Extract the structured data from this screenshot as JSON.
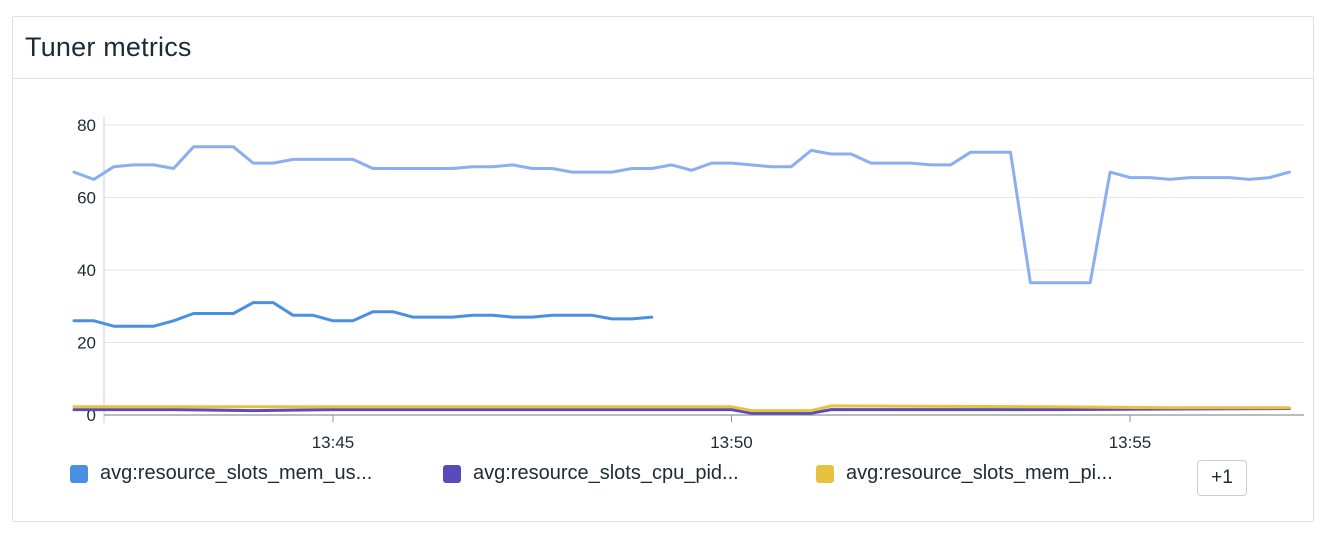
{
  "widget": {
    "title": "Tuner metrics",
    "more_label": "+1"
  },
  "legend": [
    {
      "label": "avg:resource_slots_mem_us...",
      "color": "#4a90e2"
    },
    {
      "label": "avg:resource_slots_cpu_pid...",
      "color": "#5a4bbd"
    },
    {
      "label": "avg:resource_slots_mem_pi...",
      "color": "#e8c23d"
    }
  ],
  "chart_data": {
    "type": "line",
    "title": "Tuner metrics",
    "xlabel": "",
    "ylabel": "",
    "x_range": [
      "13:41:45",
      "13:57:00"
    ],
    "x_ticks": [
      "13:45",
      "13:50",
      "13:55"
    ],
    "y_ticks": [
      0,
      20,
      40,
      60,
      80
    ],
    "ylim": [
      0,
      80
    ],
    "grid": true,
    "legend_position": "bottom",
    "series": [
      {
        "color": "#8aaef2",
        "points": [
          [
            "13:41:45",
            67
          ],
          [
            "13:42:00",
            65
          ],
          [
            "13:42:15",
            68.5
          ],
          [
            "13:42:30",
            69
          ],
          [
            "13:42:45",
            69
          ],
          [
            "13:43:00",
            68
          ],
          [
            "13:43:15",
            74
          ],
          [
            "13:43:30",
            74
          ],
          [
            "13:43:45",
            74
          ],
          [
            "13:44:00",
            69.5
          ],
          [
            "13:44:15",
            69.5
          ],
          [
            "13:44:30",
            70.5
          ],
          [
            "13:44:45",
            70.5
          ],
          [
            "13:45:00",
            70.5
          ],
          [
            "13:45:15",
            70.5
          ],
          [
            "13:45:30",
            68
          ],
          [
            "13:45:45",
            68
          ],
          [
            "13:46:00",
            68
          ],
          [
            "13:46:15",
            68
          ],
          [
            "13:46:30",
            68
          ],
          [
            "13:46:45",
            68.5
          ],
          [
            "13:47:00",
            68.5
          ],
          [
            "13:47:15",
            69
          ],
          [
            "13:47:30",
            68
          ],
          [
            "13:47:45",
            68
          ],
          [
            "13:48:00",
            67
          ],
          [
            "13:48:15",
            67
          ],
          [
            "13:48:30",
            67
          ],
          [
            "13:48:45",
            68
          ],
          [
            "13:49:00",
            68
          ],
          [
            "13:49:15",
            69
          ],
          [
            "13:49:30",
            67.5
          ],
          [
            "13:49:45",
            69.5
          ],
          [
            "13:50:00",
            69.5
          ],
          [
            "13:50:15",
            69
          ],
          [
            "13:50:30",
            68.5
          ],
          [
            "13:50:45",
            68.5
          ],
          [
            "13:51:00",
            73
          ],
          [
            "13:51:15",
            72
          ],
          [
            "13:51:30",
            72
          ],
          [
            "13:51:45",
            69.5
          ],
          [
            "13:52:00",
            69.5
          ],
          [
            "13:52:15",
            69.5
          ],
          [
            "13:52:30",
            69
          ],
          [
            "13:52:45",
            69
          ],
          [
            "13:53:00",
            72.5
          ],
          [
            "13:53:15",
            72.5
          ],
          [
            "13:53:30",
            72.5
          ],
          [
            "13:53:45",
            36.5
          ],
          [
            "13:54:00",
            36.5
          ],
          [
            "13:54:15",
            36.5
          ],
          [
            "13:54:30",
            36.5
          ],
          [
            "13:54:45",
            67
          ],
          [
            "13:55:00",
            65.5
          ],
          [
            "13:55:15",
            65.5
          ],
          [
            "13:55:30",
            65
          ],
          [
            "13:55:45",
            65.5
          ],
          [
            "13:56:00",
            65.5
          ],
          [
            "13:56:15",
            65.5
          ],
          [
            "13:56:30",
            65
          ],
          [
            "13:56:45",
            65.5
          ],
          [
            "13:57:00",
            67
          ]
        ]
      },
      {
        "color": "#4a90e2",
        "points": [
          [
            "13:41:45",
            26
          ],
          [
            "13:42:00",
            26
          ],
          [
            "13:42:15",
            24.5
          ],
          [
            "13:42:30",
            24.5
          ],
          [
            "13:42:45",
            24.5
          ],
          [
            "13:43:00",
            26
          ],
          [
            "13:43:15",
            28
          ],
          [
            "13:43:30",
            28
          ],
          [
            "13:43:45",
            28
          ],
          [
            "13:44:00",
            31
          ],
          [
            "13:44:15",
            31
          ],
          [
            "13:44:30",
            27.5
          ],
          [
            "13:44:45",
            27.5
          ],
          [
            "13:45:00",
            26
          ],
          [
            "13:45:15",
            26
          ],
          [
            "13:45:30",
            28.5
          ],
          [
            "13:45:45",
            28.5
          ],
          [
            "13:46:00",
            27
          ],
          [
            "13:46:15",
            27
          ],
          [
            "13:46:30",
            27
          ],
          [
            "13:46:45",
            27.5
          ],
          [
            "13:47:00",
            27.5
          ],
          [
            "13:47:15",
            27
          ],
          [
            "13:47:30",
            27
          ],
          [
            "13:47:45",
            27.5
          ],
          [
            "13:48:00",
            27.5
          ],
          [
            "13:48:15",
            27.5
          ],
          [
            "13:48:30",
            26.5
          ],
          [
            "13:48:45",
            26.5
          ],
          [
            "13:49:00",
            27
          ]
        ]
      },
      {
        "color": "#5a4bbd",
        "points": [
          [
            "13:41:45",
            1.5
          ],
          [
            "13:43:00",
            1.5
          ],
          [
            "13:44:00",
            1.2
          ],
          [
            "13:45:00",
            1.5
          ],
          [
            "13:47:00",
            1.5
          ],
          [
            "13:49:00",
            1.5
          ],
          [
            "13:50:00",
            1.5
          ],
          [
            "13:50:15",
            0.5
          ],
          [
            "13:51:00",
            0.5
          ],
          [
            "13:51:15",
            1.5
          ],
          [
            "13:54:00",
            1.5
          ],
          [
            "13:57:00",
            1.8
          ]
        ]
      },
      {
        "color": "#e8c23d",
        "points": [
          [
            "13:41:45",
            2.3
          ],
          [
            "13:43:00",
            2.3
          ],
          [
            "13:45:00",
            2.3
          ],
          [
            "13:47:00",
            2.3
          ],
          [
            "13:49:00",
            2.3
          ],
          [
            "13:50:00",
            2.3
          ],
          [
            "13:50:15",
            1.2
          ],
          [
            "13:51:00",
            1.2
          ],
          [
            "13:51:15",
            2.5
          ],
          [
            "13:54:00",
            2.3
          ],
          [
            "13:55:30",
            2.0
          ],
          [
            "13:57:00",
            2.0
          ]
        ]
      }
    ]
  }
}
